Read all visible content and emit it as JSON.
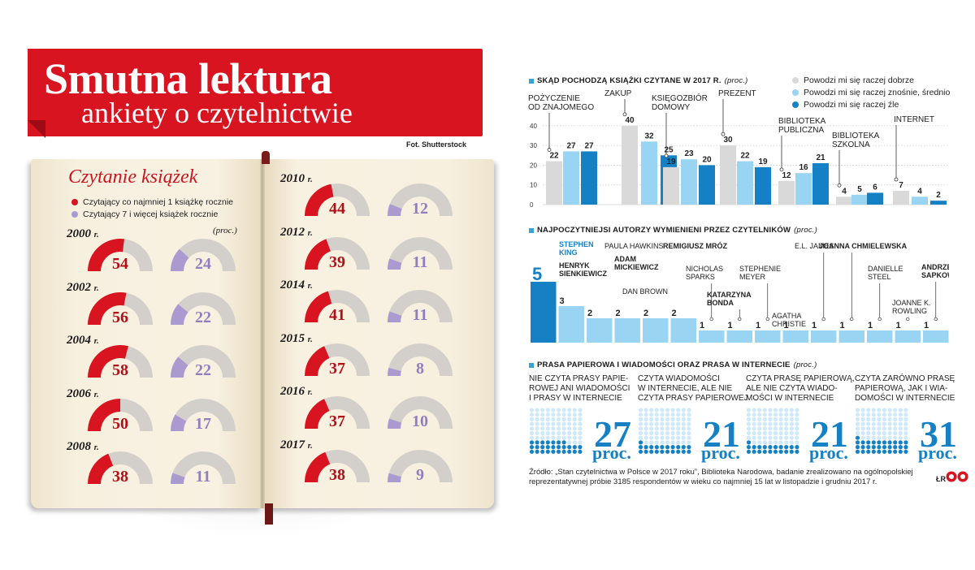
{
  "header": {
    "title": "Smutna lektura",
    "subtitle": "ankiety o czytelnictwie",
    "photo_credit": "Fot. Shutterstock"
  },
  "book": {
    "heading": "Czytanie książek",
    "legend": [
      {
        "label": "Czytający co najmniej 1 książkę rocznie",
        "color": "#d7141f"
      },
      {
        "label": "Czytający 7 i więcej książek rocznie",
        "color": "#a99bd0"
      }
    ],
    "unit": "(proc.)",
    "year_suffix": "r.",
    "years": [
      {
        "year": "2000",
        "readers": 54,
        "heavy": 24
      },
      {
        "year": "2002",
        "readers": 56,
        "heavy": 22
      },
      {
        "year": "2004",
        "readers": 58,
        "heavy": 22
      },
      {
        "year": "2006",
        "readers": 50,
        "heavy": 17
      },
      {
        "year": "2008",
        "readers": 38,
        "heavy": 11
      },
      {
        "year": "2010",
        "readers": 44,
        "heavy": 12
      },
      {
        "year": "2012",
        "readers": 39,
        "heavy": 11
      },
      {
        "year": "2014",
        "readers": 41,
        "heavy": 11
      },
      {
        "year": "2015",
        "readers": 37,
        "heavy": 8
      },
      {
        "year": "2016",
        "readers": 37,
        "heavy": 10
      },
      {
        "year": "2017",
        "readers": 38,
        "heavy": 9
      }
    ]
  },
  "colors": {
    "red": "#d7141f",
    "grey": "#d3d0cb",
    "lilac": "#a99bd0",
    "light_grey": "#d9d9d9",
    "light_blue": "#99d4f2",
    "blue": "#1581c4"
  },
  "chart_data": [
    {
      "type": "bar",
      "title": "Skąd pochodzą książki czytane w 2017 r.",
      "unit": "(proc.)",
      "categories": [
        "POŻYCZENIE\nOD ZNAJOMEGO",
        "ZAKUP",
        "KSIĘGOZBIÓR\nDOMOWY",
        "PREZENT",
        "BIBLIOTEKA\nPUBLICZNA",
        "BIBLIOTEKA\nSZKOLNA",
        "INTERNET"
      ],
      "series": [
        {
          "name": "Powodzi mi się raczej dobrze",
          "color": "#d9d9d9",
          "values": [
            22,
            40,
            19,
            30,
            12,
            4,
            7
          ]
        },
        {
          "name": "Powodzi mi się raczej znośnie, średnio",
          "color": "#99d4f2",
          "values": [
            27,
            32,
            23,
            22,
            16,
            5,
            4
          ]
        },
        {
          "name": "Powodzi mi się raczej źle",
          "color": "#1581c4",
          "values": [
            27,
            25,
            20,
            19,
            21,
            6,
            2
          ]
        }
      ],
      "yticks": [
        0,
        10,
        20,
        30,
        40
      ],
      "ylim": [
        0,
        42
      ],
      "legend_position": "top-right",
      "grid": true
    },
    {
      "type": "bar",
      "title": "Najpoczytniejsi autorzy wymienieni przez czytelników",
      "unit": "(proc.)",
      "categories": [
        "STEPHEN KING",
        "HENRYK SIENKIEWICZ",
        "PAULA HAWKINS",
        "ADAM MICKIEWICZ",
        "DAN BROWN",
        "REMIGIUSZ MRÓZ",
        "NICHOLAS SPARKS",
        "KATARZYNA BONDA",
        "STEPHENIE MEYER",
        "AGATHA CHRISTIE",
        "E.L. JAMES",
        "JOANNA CHMIELEWSKA",
        "DANIELLE STEEL",
        "JOANNE K. ROWLING",
        "ANDRZEJ SAPKOWSKI"
      ],
      "values": [
        5,
        3,
        2,
        2,
        2,
        2,
        1,
        1,
        1,
        1,
        1,
        1,
        1,
        1,
        1
      ]
    },
    {
      "type": "table",
      "title": "Prasa papierowa i wiadomości oraz prasa w internecie",
      "unit": "(proc.)",
      "value_suffix": "proc.",
      "rows": [
        {
          "label": "NIE CZYTA PRASY PAPIE-\nROWEJ ANI WIADOMOŚCI\nI PRASY W INTERNECIE",
          "value": 27
        },
        {
          "label": "CZYTA WIADOMOŚCI\nW INTERNECIE, ALE NIE\nCZYTA PRASY PAPIEROWEJ",
          "value": 21
        },
        {
          "label": "CZYTA PRASĘ PAPIEROWĄ,\nALE NIE CZYTA WIADO-\nMOŚCI W INTERNECIE",
          "value": 21
        },
        {
          "label": "CZYTA ZARÓWNO PRASĘ\nPAPIEROWĄ, JAK I WIA-\nDOMOŚCI W INTERNECIE",
          "value": 31
        }
      ]
    }
  ],
  "authors_display": [
    {
      "name": "STEPHEN\nKING",
      "bold": true,
      "blue": true
    },
    {
      "name": "HENRYK\nSIENKIEWICZ",
      "bold": true,
      "blue": false
    },
    {
      "name": "PAULA HAWKINS",
      "bold": false,
      "blue": false
    },
    {
      "name": "ADAM\nMICKIEWICZ",
      "bold": true,
      "blue": false
    },
    {
      "name": "DAN BROWN",
      "bold": false,
      "blue": false
    },
    {
      "name": "REMIGIUSZ MRÓZ",
      "bold": true,
      "blue": false
    },
    {
      "name": "NICHOLAS\nSPARKS",
      "bold": false,
      "blue": false
    },
    {
      "name": "KATARZYNA\nBONDA",
      "bold": true,
      "blue": false
    },
    {
      "name": "STEPHENIE\nMEYER",
      "bold": false,
      "blue": false
    },
    {
      "name": "AGATHA\nCHRISTIE",
      "bold": false,
      "blue": false
    },
    {
      "name": "E.L. JAMES",
      "bold": false,
      "blue": false
    },
    {
      "name": "JOANNA CHMIELEWSKA",
      "bold": true,
      "blue": false
    },
    {
      "name": "DANIELLE\nSTEEL",
      "bold": false,
      "blue": false
    },
    {
      "name": "JOANNE K.\nROWLING",
      "bold": false,
      "blue": false
    },
    {
      "name": "ANDRZEJ\nSAPKOWSKI",
      "bold": true,
      "blue": false
    }
  ],
  "source": "Źródło: „Stan czytelnictwa w Polsce w 2017 roku”, Biblioteka Narodowa, badanie zrealizowano na ogólnopolskiej\nreprezentatywnej próbie 3185 respondentów w wieku co najmniej 15 lat w listopadzie i grudniu 2017 r.",
  "signature": "ŁR"
}
